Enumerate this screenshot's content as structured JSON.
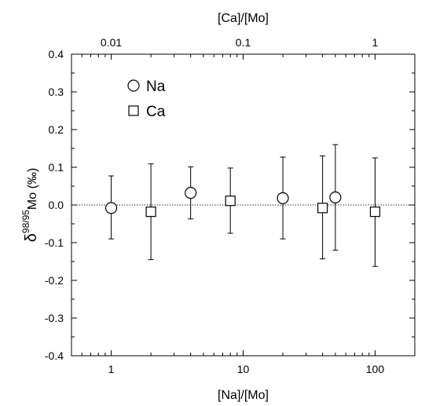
{
  "chart_data": {
    "type": "scatter",
    "x_bottom": {
      "label": "[Na]/[Mo]",
      "scale": "log",
      "range": [
        0.5,
        200
      ],
      "ticks": [
        1,
        10,
        100
      ],
      "tick_labels": [
        "1",
        "10",
        "100"
      ]
    },
    "x_top": {
      "label": "[Ca]/[Mo]",
      "scale": "log",
      "range": [
        0.005,
        2
      ],
      "ticks": [
        0.01,
        0.1,
        1
      ],
      "tick_labels": [
        "0.01",
        "0.1",
        "1"
      ]
    },
    "y": {
      "label_delta": "δ",
      "label_superscript": "98/95",
      "label_rest": "Mo (‰)",
      "range": [
        -0.4,
        0.4
      ],
      "ticks": [
        -0.4,
        -0.3,
        -0.2,
        -0.1,
        0.0,
        0.1,
        0.2,
        0.3,
        0.4
      ],
      "tick_labels": [
        "-0.4",
        "-0.3",
        "-0.2",
        "-0.1",
        "0.0",
        "0.1",
        "0.2",
        "0.3",
        "0.4"
      ]
    },
    "reference_line": {
      "y": 0.0,
      "style": "dotted"
    },
    "legend": {
      "placement": "top-left"
    },
    "series": [
      {
        "name": "Na",
        "marker": "circle",
        "axis": "bottom",
        "points": [
          {
            "x": 1,
            "y": -0.008,
            "err_low": -0.09,
            "err_high": 0.077
          },
          {
            "x": 4,
            "y": 0.032,
            "err_low": -0.037,
            "err_high": 0.101
          },
          {
            "x": 20,
            "y": 0.018,
            "err_low": -0.09,
            "err_high": 0.127
          },
          {
            "x": 50,
            "y": 0.02,
            "err_low": -0.12,
            "err_high": 0.16
          }
        ]
      },
      {
        "name": "Ca",
        "marker": "square",
        "axis": "top",
        "points": [
          {
            "x": 0.02,
            "y": -0.018,
            "err_low": -0.145,
            "err_high": 0.109
          },
          {
            "x": 0.08,
            "y": 0.011,
            "err_low": -0.075,
            "err_high": 0.098
          },
          {
            "x": 0.4,
            "y": -0.008,
            "err_low": -0.143,
            "err_high": 0.13
          },
          {
            "x": 1,
            "y": -0.018,
            "err_low": -0.163,
            "err_high": 0.125
          }
        ]
      }
    ]
  }
}
